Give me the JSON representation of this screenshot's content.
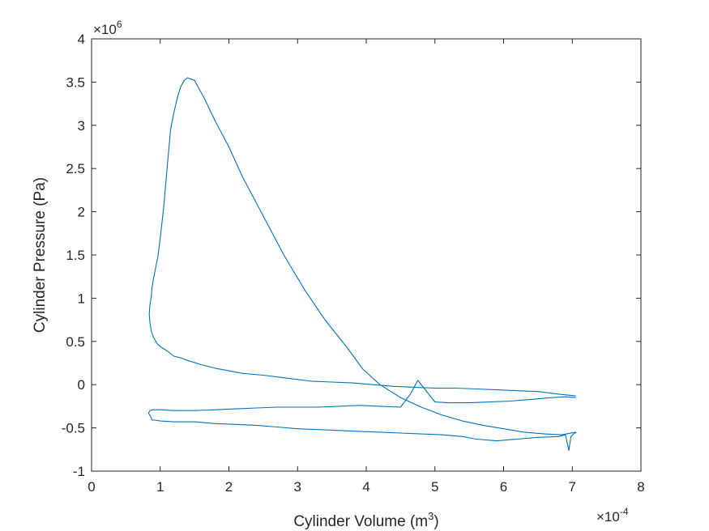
{
  "chart_data": {
    "type": "line",
    "title": "",
    "xlabel": "Cylinder Volume (m",
    "xlabel_sup": "3",
    "xlabel_tail": ")",
    "ylabel": "Cylinder Pressure (Pa)",
    "x_exponent_label": "×10",
    "x_exponent": "-4",
    "y_exponent_label": "×10",
    "y_exponent": "6",
    "xlim": [
      0,
      8
    ],
    "ylim": [
      -1,
      4
    ],
    "xticks": [
      0,
      1,
      2,
      3,
      4,
      5,
      6,
      7,
      8
    ],
    "yticks": [
      -1,
      -0.5,
      0,
      0.5,
      1,
      1.5,
      2,
      2.5,
      3,
      3.5,
      4
    ],
    "xtick_labels": [
      "0",
      "1",
      "2",
      "3",
      "4",
      "5",
      "6",
      "7",
      "8"
    ],
    "ytick_labels": [
      "-1",
      "-0.5",
      "0",
      "0.5",
      "1",
      "1.5",
      "2",
      "2.5",
      "3",
      "3.5",
      "4"
    ],
    "grid": false,
    "line_color": "#0072BD",
    "series": [
      {
        "x": [
          7.05,
          6.8,
          6.5,
          6.2,
          5.9,
          5.6,
          5.3,
          5.0,
          4.7,
          4.4,
          4.1,
          3.8,
          3.5,
          3.2,
          3.0,
          2.8,
          2.5,
          2.2,
          2.0,
          1.8,
          1.6,
          1.4,
          1.3,
          1.2,
          1.1,
          1.0,
          0.95,
          0.9,
          0.87,
          0.85,
          0.84,
          0.85,
          0.87,
          0.88,
          0.9,
          0.94,
          0.97,
          1.0,
          1.05,
          1.1,
          1.15,
          1.2,
          1.25,
          1.3,
          1.35,
          1.4,
          1.5,
          1.65,
          1.8,
          2.0,
          2.2,
          2.5,
          2.8,
          3.1,
          3.4,
          3.7,
          3.95,
          4.2,
          4.5,
          4.8,
          5.1,
          5.4,
          5.7,
          6.0,
          6.3,
          6.6,
          6.85,
          7.05
        ],
        "y": [
          -0.13,
          -0.11,
          -0.08,
          -0.07,
          -0.06,
          -0.05,
          -0.04,
          -0.04,
          -0.03,
          -0.02,
          0.0,
          0.02,
          0.03,
          0.04,
          0.06,
          0.08,
          0.11,
          0.13,
          0.16,
          0.19,
          0.23,
          0.28,
          0.31,
          0.33,
          0.39,
          0.44,
          0.48,
          0.55,
          0.62,
          0.72,
          0.82,
          0.92,
          1.02,
          1.12,
          1.22,
          1.38,
          1.5,
          1.7,
          2.05,
          2.5,
          2.95,
          3.15,
          3.32,
          3.45,
          3.52,
          3.55,
          3.52,
          3.3,
          3.05,
          2.75,
          2.4,
          1.95,
          1.5,
          1.1,
          0.75,
          0.45,
          0.18,
          0.0,
          -0.15,
          -0.26,
          -0.35,
          -0.42,
          -0.47,
          -0.51,
          -0.55,
          -0.57,
          -0.58,
          -0.55
        ]
      },
      {
        "x": [
          7.05,
          6.9,
          6.7,
          6.4,
          6.1,
          5.8,
          5.5,
          5.2,
          5.0,
          4.9,
          4.75,
          4.65,
          4.5,
          4.2,
          3.9,
          3.6,
          3.3,
          3.0,
          2.7,
          2.4,
          2.1,
          1.8,
          1.5,
          1.2,
          1.0,
          0.9,
          0.85,
          0.83,
          0.86,
          0.88,
          0.92,
          1.0,
          1.2,
          1.5,
          1.8,
          2.1,
          2.4,
          2.7,
          3.0,
          3.3,
          3.6,
          3.9,
          4.2,
          4.5,
          4.8,
          5.1,
          5.4,
          5.6,
          5.9,
          6.2,
          6.5,
          6.8,
          6.9,
          6.95,
          6.98,
          7.02,
          7.06
        ],
        "y": [
          -0.15,
          -0.14,
          -0.15,
          -0.17,
          -0.19,
          -0.2,
          -0.21,
          -0.21,
          -0.2,
          -0.1,
          0.05,
          -0.1,
          -0.26,
          -0.25,
          -0.24,
          -0.25,
          -0.26,
          -0.26,
          -0.26,
          -0.27,
          -0.28,
          -0.29,
          -0.3,
          -0.3,
          -0.29,
          -0.29,
          -0.3,
          -0.33,
          -0.37,
          -0.41,
          -0.41,
          -0.42,
          -0.43,
          -0.43,
          -0.45,
          -0.46,
          -0.47,
          -0.49,
          -0.51,
          -0.52,
          -0.53,
          -0.54,
          -0.55,
          -0.56,
          -0.57,
          -0.58,
          -0.6,
          -0.63,
          -0.65,
          -0.63,
          -0.61,
          -0.6,
          -0.58,
          -0.76,
          -0.6,
          -0.57,
          -0.55
        ]
      }
    ]
  }
}
